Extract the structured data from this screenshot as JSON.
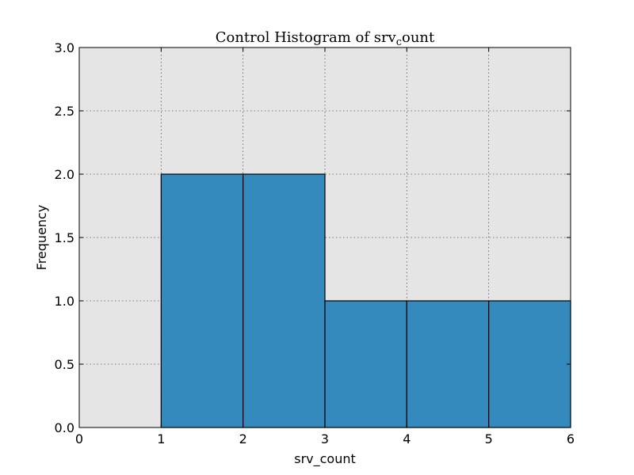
{
  "chart_data": {
    "type": "bar",
    "histogram": true,
    "title_main": "Control Histogram of srv",
    "title_sub": "c",
    "title_tail": "ount",
    "xlabel": "srv_count",
    "ylabel": "Frequency",
    "bins": [
      {
        "x0": 1,
        "x1": 2,
        "value": 2
      },
      {
        "x0": 2,
        "x1": 3,
        "value": 2
      },
      {
        "x0": 3,
        "x1": 4,
        "value": 1
      },
      {
        "x0": 4,
        "x1": 5,
        "value": 1
      },
      {
        "x0": 5,
        "x1": 6,
        "value": 1
      }
    ],
    "xlim": [
      0,
      6
    ],
    "ylim": [
      0,
      3
    ],
    "xticks": [
      0,
      1,
      2,
      3,
      4,
      5,
      6
    ],
    "xtick_labels": [
      "0",
      "1",
      "2",
      "3",
      "4",
      "5",
      "6"
    ],
    "yticks": [
      0,
      0.5,
      1,
      1.5,
      2,
      2.5,
      3
    ],
    "ytick_labels": [
      "0.0",
      "0.5",
      "1.0",
      "1.5",
      "2.0",
      "2.5",
      "3.0"
    ],
    "grid": true,
    "colors": {
      "bar_fill": "#348abd",
      "bar_edge": "#000000",
      "plot_bg": "#e5e5e5",
      "grid": "#555555"
    }
  }
}
